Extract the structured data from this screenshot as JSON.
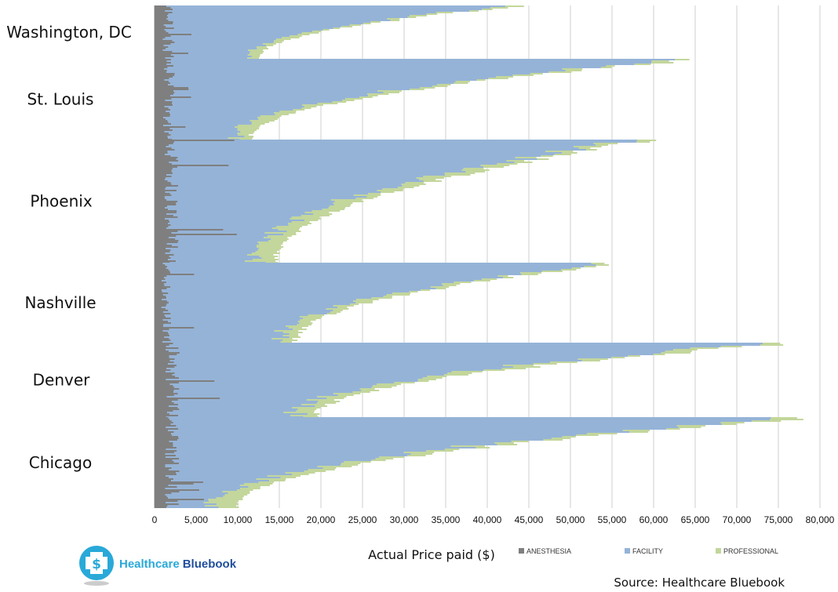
{
  "chart_data": {
    "type": "bar",
    "orientation": "horizontal",
    "stacked": true,
    "title": "",
    "xlabel": "Actual Price paid ($)",
    "ylabel": "",
    "xlim": [
      0,
      80000
    ],
    "x_ticks": [
      0,
      5000,
      10000,
      15000,
      20000,
      25000,
      30000,
      35000,
      40000,
      45000,
      50000,
      55000,
      60000,
      65000,
      70000,
      75000,
      80000
    ],
    "x_tick_labels": [
      "0",
      "5,000",
      "10,000",
      "15,000",
      "20,000",
      "25,000",
      "30,000",
      "35,000",
      "40,000",
      "45,000",
      "50,000",
      "55,000",
      "60,000",
      "65,000",
      "70,000",
      "75,000",
      "80,000"
    ],
    "grid": "vertical",
    "legend": {
      "position": "bottom",
      "entries": [
        "ANESTHESIA",
        "FACILITY",
        "PROFESSIONAL"
      ]
    },
    "colors": {
      "ANESTHESIA": "#7f7f7f",
      "FACILITY": "#95b3d7",
      "PROFESSIONAL": "#c3d69b"
    },
    "categories": [
      "Washington, DC",
      "St. Louis",
      "Phoenix",
      "Nashville",
      "Denver",
      "Chicago"
    ],
    "groups": [
      {
        "name": "Washington, DC",
        "min_total": 12500,
        "max_total": 44000,
        "typical_anesthesia": 1800,
        "max_anesthesia": 5000,
        "typical_professional": 1500
      },
      {
        "name": "St. Louis",
        "min_total": 11500,
        "max_total": 65000,
        "typical_anesthesia": 1800,
        "max_anesthesia": 4800,
        "typical_professional": 2000
      },
      {
        "name": "Phoenix",
        "min_total": 14500,
        "max_total": 59500,
        "typical_anesthesia": 2200,
        "max_anesthesia": 10000,
        "typical_professional": 2500
      },
      {
        "name": "Nashville",
        "min_total": 17000,
        "max_total": 55500,
        "typical_anesthesia": 1500,
        "max_anesthesia": 5500,
        "typical_professional": 2000
      },
      {
        "name": "Denver",
        "min_total": 19500,
        "max_total": 77000,
        "typical_anesthesia": 2300,
        "max_anesthesia": 8000,
        "typical_professional": 2500
      },
      {
        "name": "Chicago",
        "min_total": 10000,
        "max_total": 78500,
        "typical_anesthesia": 2300,
        "max_anesthesia": 6200,
        "typical_professional": 2800
      }
    ]
  },
  "source": "Source: Healthcare Bluebook",
  "logo": {
    "text_part1": "Healthcare",
    "text_part2": "Bluebook",
    "colors": {
      "teal": "#29a9d8",
      "dark": "#1f4e9c"
    }
  }
}
